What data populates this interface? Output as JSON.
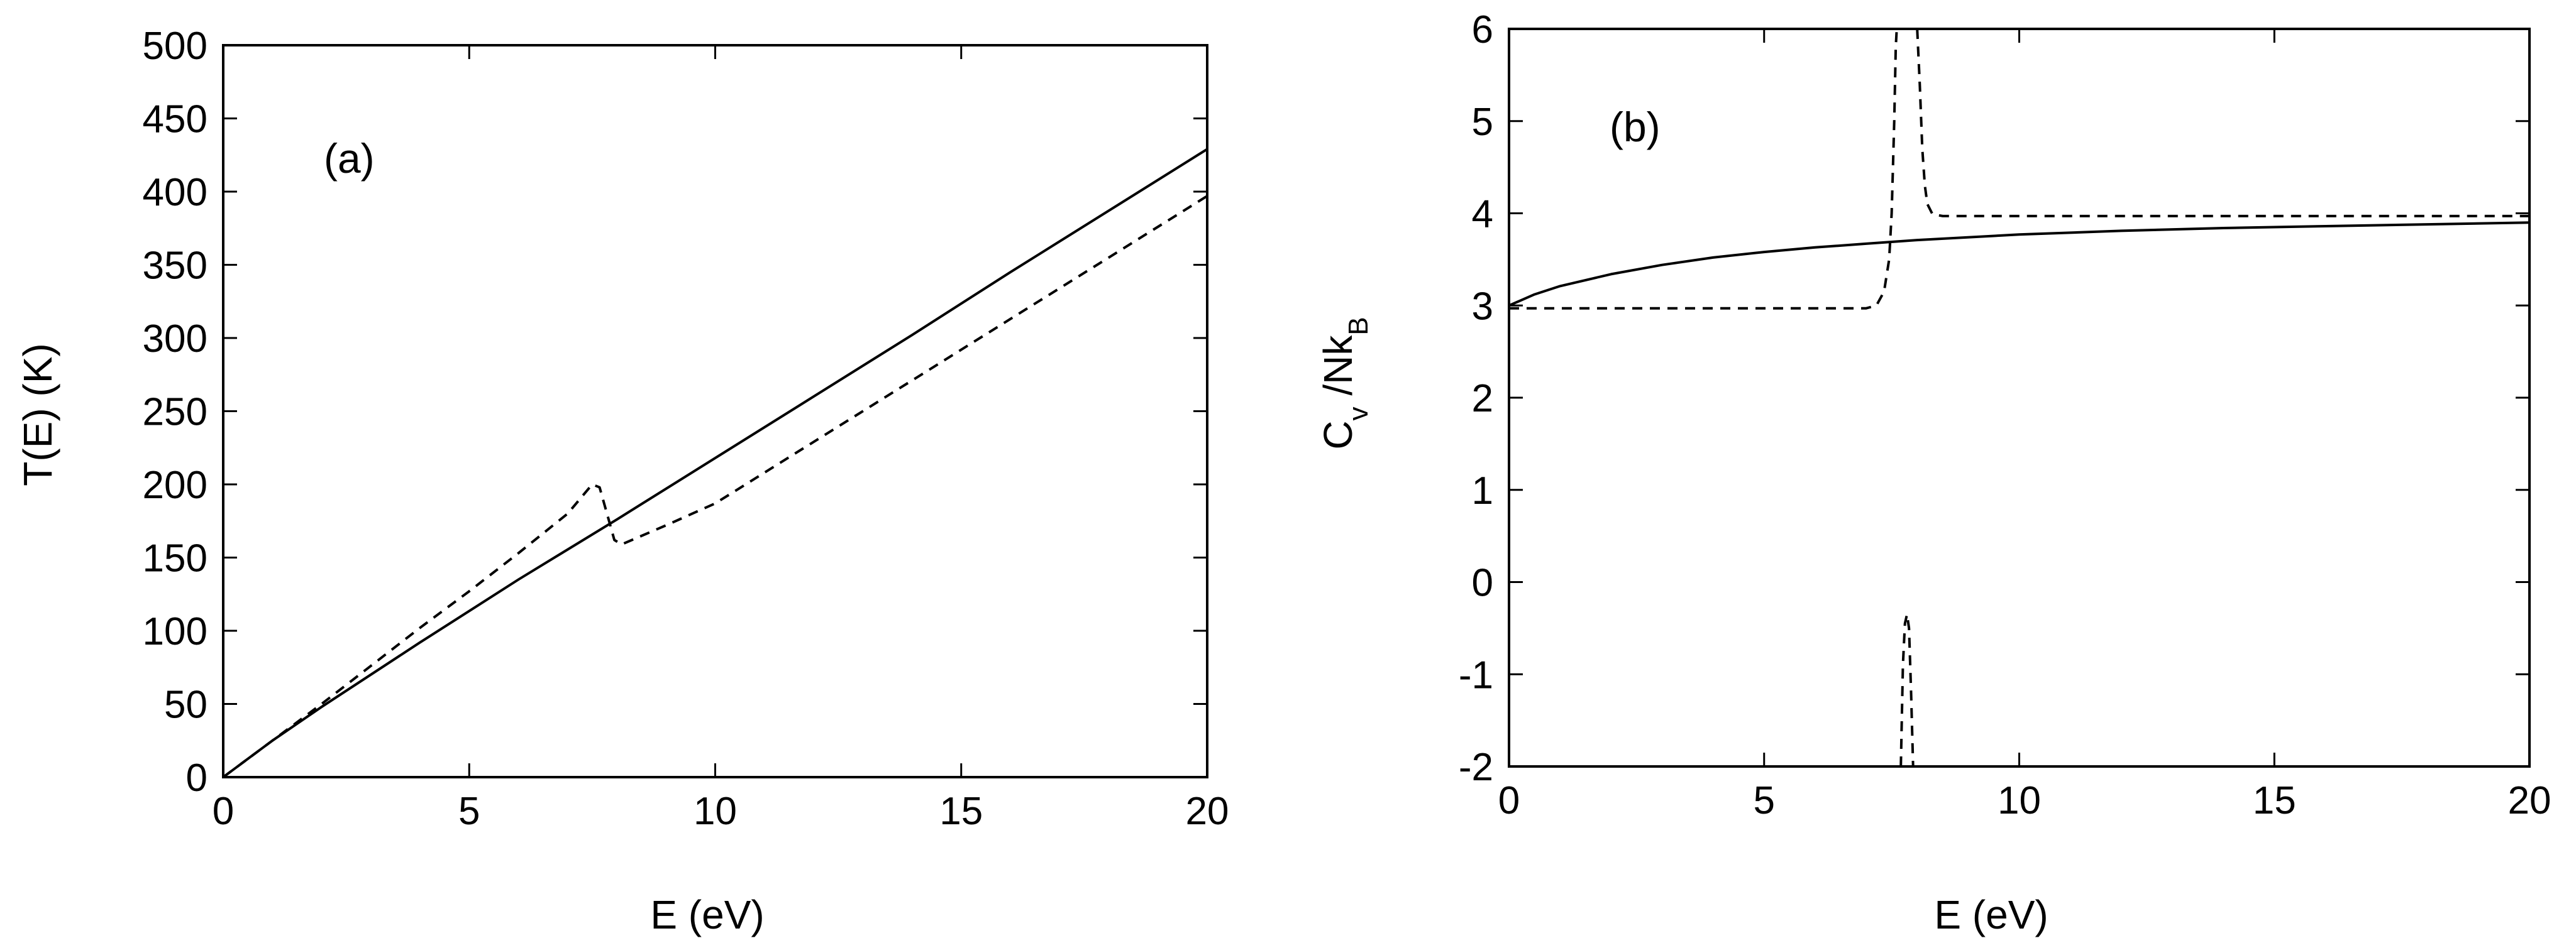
{
  "chart_data": [
    {
      "type": "line",
      "panel_label": "(a)",
      "title": "",
      "xlabel": "E (eV)",
      "ylabel": "T(E) (K)",
      "xlim": [
        0,
        20
      ],
      "ylim": [
        0,
        500
      ],
      "xticks": [
        0,
        5,
        10,
        15,
        20
      ],
      "yticks": [
        0,
        50,
        100,
        150,
        200,
        250,
        300,
        350,
        400,
        450,
        500
      ],
      "grid": false,
      "legend": "none",
      "series": [
        {
          "style": "solid",
          "x": [
            0,
            1,
            2,
            4,
            6,
            8,
            10,
            12,
            14,
            16,
            18,
            20
          ],
          "y": [
            0,
            25,
            48,
            92,
            135,
            176,
            218,
            260,
            302,
            345,
            387,
            429
          ]
        },
        {
          "style": "dashed",
          "x": [
            0,
            1,
            2,
            3,
            4,
            5,
            6,
            7,
            7.5,
            7.65,
            7.8,
            7.95,
            8.1,
            9,
            10,
            12,
            14,
            16,
            18,
            20
          ],
          "y": [
            0,
            25,
            50,
            76,
            102,
            127,
            153,
            180,
            200,
            198,
            180,
            162,
            159,
            172,
            187,
            229,
            271,
            313,
            355,
            397
          ]
        }
      ]
    },
    {
      "type": "line",
      "panel_label": "(b)",
      "title": "",
      "xlabel": "E (eV)",
      "ylabel": "C_v /Nk_B",
      "ylabel_main": "C",
      "ylabel_sub1": "v",
      "ylabel_mid": " /Nk",
      "ylabel_sub2": "B",
      "xlim": [
        0,
        20
      ],
      "ylim": [
        -2,
        6
      ],
      "xticks": [
        0,
        5,
        10,
        15,
        20
      ],
      "yticks": [
        -2,
        -1,
        0,
        1,
        2,
        3,
        4,
        5,
        6
      ],
      "grid": false,
      "legend": "none",
      "series": [
        {
          "style": "solid",
          "x": [
            0,
            0.5,
            1,
            2,
            3,
            4,
            5,
            6,
            7,
            8,
            10,
            12,
            14,
            16,
            18,
            20
          ],
          "y": [
            3.0,
            3.12,
            3.21,
            3.34,
            3.44,
            3.52,
            3.58,
            3.63,
            3.67,
            3.71,
            3.77,
            3.81,
            3.84,
            3.86,
            3.88,
            3.9
          ]
        },
        {
          "style": "dashed",
          "segments": [
            {
              "x": [
                0,
                2,
                4,
                6,
                7.0,
                7.2,
                7.35,
                7.45,
                7.5,
                7.55,
                7.58,
                7.6
              ],
              "y": [
                2.97,
                2.97,
                2.97,
                2.97,
                2.97,
                3.0,
                3.15,
                3.5,
                4.0,
                5.0,
                5.8,
                6.0
              ]
            },
            {
              "x": [
                7.68,
                7.72,
                7.76,
                7.8,
                7.84,
                7.88,
                7.92
              ],
              "y": [
                -2.0,
                -0.9,
                -0.45,
                -0.35,
                -0.5,
                -1.2,
                -2.0
              ]
            },
            {
              "x": [
                8.0,
                8.05,
                8.1,
                8.15,
                8.2,
                8.3,
                8.5,
                10,
                12,
                14,
                16,
                18,
                20
              ],
              "y": [
                6.0,
                5.4,
                4.7,
                4.3,
                4.1,
                3.99,
                3.97,
                3.97,
                3.97,
                3.97,
                3.97,
                3.97,
                3.97
              ]
            }
          ]
        }
      ]
    }
  ]
}
